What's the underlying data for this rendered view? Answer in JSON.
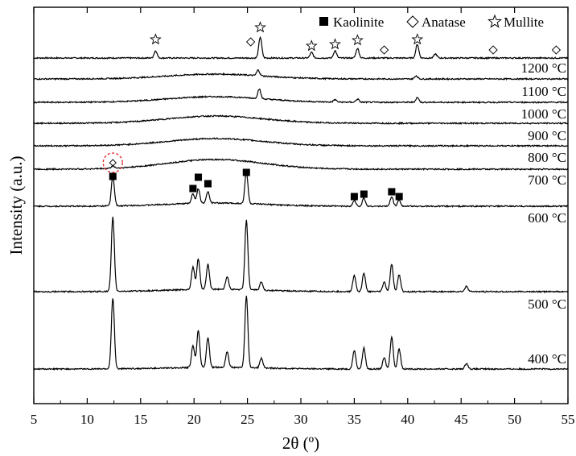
{
  "chart_data": {
    "type": "line",
    "xlabel": "2θ (º)",
    "ylabel": "Intensity (a.u.)",
    "xlim": [
      5,
      55
    ],
    "xticks": [
      "5",
      "10",
      "15",
      "20",
      "25",
      "30",
      "35",
      "40",
      "45",
      "50",
      "55"
    ],
    "grid": false,
    "legend_position": "top-right",
    "legend": [
      {
        "name": "Kaolinite",
        "marker": "filled-square"
      },
      {
        "name": "Anatase",
        "marker": "open-diamond"
      },
      {
        "name": "Mullite",
        "marker": "open-star"
      }
    ],
    "series": [
      {
        "name": "1200 °C",
        "label": "1200 °C",
        "peaks": [
          {
            "x": 16.4,
            "h": 9
          },
          {
            "x": 26.2,
            "h": 26
          },
          {
            "x": 31.0,
            "h": 7
          },
          {
            "x": 33.2,
            "h": 9
          },
          {
            "x": 35.3,
            "h": 12
          },
          {
            "x": 40.9,
            "h": 17
          },
          {
            "x": 42.6,
            "h": 5
          }
        ],
        "humps": [
          {
            "x": 22,
            "h": 0
          }
        ]
      },
      {
        "name": "1100 °C",
        "label": "1100 °C",
        "peaks": [
          {
            "x": 26.0,
            "h": 7
          },
          {
            "x": 40.8,
            "h": 4
          }
        ],
        "humps": [
          {
            "x": 22,
            "h": 6
          }
        ]
      },
      {
        "name": "1000 °C",
        "label": "1000 °C",
        "peaks": [
          {
            "x": 26.1,
            "h": 12
          },
          {
            "x": 33.2,
            "h": 3
          },
          {
            "x": 35.3,
            "h": 4
          },
          {
            "x": 40.9,
            "h": 6
          }
        ],
        "humps": [
          {
            "x": 22,
            "h": 7
          }
        ]
      },
      {
        "name": "900 °C",
        "label": "900 °C",
        "peaks": [],
        "humps": [
          {
            "x": 22,
            "h": 9
          }
        ]
      },
      {
        "name": "800 °C",
        "label": "800 °C",
        "peaks": [],
        "humps": [
          {
            "x": 22,
            "h": 9
          }
        ]
      },
      {
        "name": "700 °C",
        "label": "700 °C",
        "peaks": [
          {
            "x": 12.4,
            "h": 3
          }
        ],
        "humps": [
          {
            "x": 22,
            "h": 12
          }
        ]
      },
      {
        "name": "600 °C",
        "label": "600 °C",
        "peaks": [
          {
            "x": 12.4,
            "h": 37
          },
          {
            "x": 19.9,
            "h": 12
          },
          {
            "x": 20.4,
            "h": 18
          },
          {
            "x": 21.3,
            "h": 14
          },
          {
            "x": 24.9,
            "h": 40
          },
          {
            "x": 35.0,
            "h": 7
          },
          {
            "x": 35.9,
            "h": 10
          },
          {
            "x": 38.5,
            "h": 12
          },
          {
            "x": 39.2,
            "h": 8
          }
        ],
        "humps": [
          {
            "x": 22,
            "h": 4
          }
        ]
      },
      {
        "name": "500 °C",
        "label": "500 °C",
        "peaks": [
          {
            "x": 12.4,
            "h": 92
          },
          {
            "x": 19.9,
            "h": 28
          },
          {
            "x": 20.4,
            "h": 38
          },
          {
            "x": 21.3,
            "h": 31
          },
          {
            "x": 23.1,
            "h": 16
          },
          {
            "x": 24.9,
            "h": 86
          },
          {
            "x": 26.3,
            "h": 10
          },
          {
            "x": 35.0,
            "h": 20
          },
          {
            "x": 35.9,
            "h": 23
          },
          {
            "x": 37.8,
            "h": 12
          },
          {
            "x": 38.5,
            "h": 34
          },
          {
            "x": 39.2,
            "h": 21
          },
          {
            "x": 45.5,
            "h": 7
          }
        ],
        "humps": [
          {
            "x": 22,
            "h": 3
          }
        ]
      },
      {
        "name": "400 °C",
        "label": "400 °C",
        "peaks": [
          {
            "x": 12.4,
            "h": 88
          },
          {
            "x": 19.9,
            "h": 27
          },
          {
            "x": 20.4,
            "h": 46
          },
          {
            "x": 21.3,
            "h": 37
          },
          {
            "x": 23.1,
            "h": 20
          },
          {
            "x": 24.9,
            "h": 89
          },
          {
            "x": 26.3,
            "h": 12
          },
          {
            "x": 35.0,
            "h": 23
          },
          {
            "x": 35.9,
            "h": 26
          },
          {
            "x": 37.8,
            "h": 14
          },
          {
            "x": 38.5,
            "h": 40
          },
          {
            "x": 39.2,
            "h": 25
          },
          {
            "x": 45.5,
            "h": 7
          }
        ],
        "humps": [
          {
            "x": 22,
            "h": 2
          }
        ]
      }
    ],
    "annotations": {
      "kaolinite_markers_x": [
        12.4,
        19.9,
        20.4,
        21.3,
        24.9,
        35.0,
        35.9,
        38.5,
        39.2
      ],
      "mullite_markers_x": [
        16.4,
        26.2,
        31.0,
        33.2,
        35.3,
        40.9
      ],
      "anatase_markers_x": [
        25.3,
        37.8,
        48.0,
        53.9
      ],
      "highlight_circle_x": 12.4
    }
  }
}
